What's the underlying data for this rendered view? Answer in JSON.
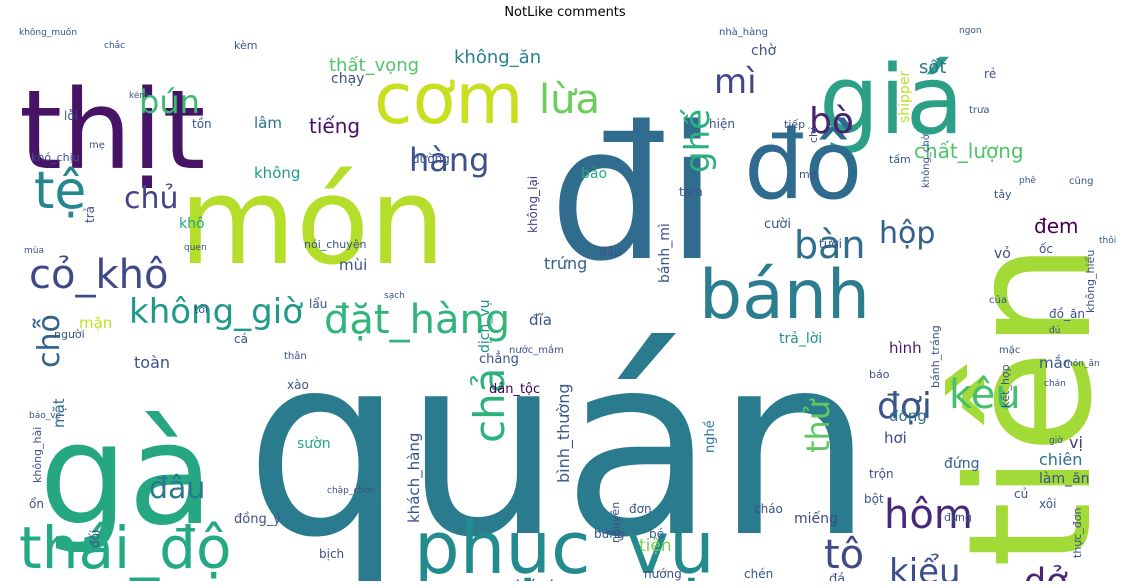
{
  "chart_data": {
    "type": "wordcloud",
    "title": "NotLike comments",
    "words": [
      {
        "text": "quán",
        "color": "#2a7b8e"
      },
      {
        "text": "đi",
        "color": "#2f6c8e"
      },
      {
        "text": "món",
        "color": "#b5de2b"
      },
      {
        "text": "tiền",
        "color": "#a2da37"
      },
      {
        "text": "thịt",
        "color": "#471365"
      },
      {
        "text": "gà",
        "color": "#25a882"
      },
      {
        "text": "giá",
        "color": "#2c9f87"
      },
      {
        "text": "đồ",
        "color": "#2f6b8e"
      },
      {
        "text": "cơm",
        "color": "#c8e020"
      },
      {
        "text": "bánh",
        "color": "#2b7e8e"
      },
      {
        "text": "phục_vụ",
        "color": "#238a8d"
      },
      {
        "text": "thái_độ",
        "color": "#23a983"
      },
      {
        "text": "tệ",
        "color": "#24878e"
      },
      {
        "text": "cỏ_khô",
        "color": "#3f4889"
      },
      {
        "text": "đặt_hàng",
        "color": "#31b57b"
      },
      {
        "text": "không_giờ",
        "color": "#1f9a8a"
      },
      {
        "text": "bàn",
        "color": "#2e6f8e"
      },
      {
        "text": "hộp",
        "color": "#34608d"
      },
      {
        "text": "hàng",
        "color": "#3b528b"
      },
      {
        "text": "lừa",
        "color": "#6ccd5a"
      },
      {
        "text": "chả",
        "color": "#2db27d"
      },
      {
        "text": "kêu",
        "color": "#46c06f"
      },
      {
        "text": "tô",
        "color": "#3e4a89"
      },
      {
        "text": "kiểu",
        "color": "#3c4f8a"
      },
      {
        "text": "hôm",
        "color": "#482979"
      },
      {
        "text": "đợi",
        "color": "#3a538b"
      },
      {
        "text": "dở",
        "color": "#482677"
      },
      {
        "text": "bún",
        "color": "#3bbb75"
      },
      {
        "text": "bò",
        "color": "#482173"
      },
      {
        "text": "mì",
        "color": "#3f4788"
      },
      {
        "text": "ghế",
        "color": "#2ab07f"
      },
      {
        "text": "chủ",
        "color": "#414487"
      },
      {
        "text": "chỗ",
        "color": "#33628d"
      },
      {
        "text": "đâu",
        "color": "#2a788e"
      },
      {
        "text": "thử",
        "color": "#5ec962"
      },
      {
        "text": "tiếng",
        "color": "#471063"
      },
      {
        "text": "chất_lượng",
        "color": "#50c46a"
      },
      {
        "text": "thất_vọng",
        "color": "#52c569"
      },
      {
        "text": "không_ăn",
        "color": "#27808e"
      },
      {
        "text": "sốt",
        "color": "#2c738e"
      },
      {
        "text": "shipper",
        "color": "#bddf26"
      },
      {
        "text": "đem",
        "color": "#440154"
      },
      {
        "text": "nhánh",
        "color": "#3b528b"
      },
      {
        "text": "tiện",
        "color": "#7ad151"
      },
      {
        "text": "trứng",
        "color": "#355f8d"
      },
      {
        "text": "mặn",
        "color": "#c2df23"
      },
      {
        "text": "toàn",
        "color": "#3b528b"
      },
      {
        "text": "mặt",
        "color": "#2c728e"
      },
      {
        "text": "đồng_ý",
        "color": "#3b528b"
      },
      {
        "text": "chiên",
        "color": "#2d708e"
      },
      {
        "text": "miếng",
        "color": "#3e4989"
      },
      {
        "text": "bình_thường",
        "color": "#38588c"
      },
      {
        "text": "khách_hàng",
        "color": "#3b528b"
      },
      {
        "text": "dịch_vụ",
        "color": "#21918c"
      },
      {
        "text": "không_thấy",
        "color": "#25858e"
      },
      {
        "text": "không_lại",
        "color": "#424086"
      },
      {
        "text": "mùi",
        "color": "#3b528b"
      },
      {
        "text": "sườn",
        "color": "#22a785"
      },
      {
        "text": "hơi",
        "color": "#3e4a89"
      },
      {
        "text": "vị",
        "color": "#433e85"
      },
      {
        "text": "đồng",
        "color": "#2b748e"
      },
      {
        "text": "đĩa",
        "color": "#3b528b"
      },
      {
        "text": "hình",
        "color": "#481b6d"
      },
      {
        "text": "mắc",
        "color": "#38598c"
      },
      {
        "text": "trả_lời",
        "color": "#1f958b"
      },
      {
        "text": "dân_tộc",
        "color": "#440154"
      },
      {
        "text": "làm_ăn",
        "color": "#3b528b"
      },
      {
        "text": "đứng",
        "color": "#34608d"
      },
      {
        "text": "vỏ",
        "color": "#3d4d8a"
      },
      {
        "text": "bảo",
        "color": "#25ab82"
      },
      {
        "text": "khô",
        "color": "#20a386"
      },
      {
        "text": "không",
        "color": "#1e9c89"
      },
      {
        "text": "lâm",
        "color": "#2c718e"
      },
      {
        "text": "chờ",
        "color": "#3b528b"
      },
      {
        "text": "chạy",
        "color": "#3b528b"
      },
      {
        "text": "chẳng",
        "color": "#3b528b"
      },
      {
        "text": "tươi",
        "color": "#3b528b"
      },
      {
        "text": "cười",
        "color": "#3b528b"
      },
      {
        "text": "nghề",
        "color": "#2a788e"
      },
      {
        "text": "bánh_mì",
        "color": "#39568c"
      },
      {
        "text": "cá",
        "color": "#3b528b"
      },
      {
        "text": "ốc",
        "color": "#3b528b"
      },
      {
        "text": "xôi",
        "color": "#3b528b"
      },
      {
        "text": "bứng",
        "color": "#3b528b"
      },
      {
        "text": "trộn",
        "color": "#3b528b"
      },
      {
        "text": "đơn",
        "color": "#3b528b"
      },
      {
        "text": "nướng",
        "color": "#3b528b"
      },
      {
        "text": "tốt",
        "color": "#3b528b"
      },
      {
        "text": "bịch",
        "color": "#3b528b"
      },
      {
        "text": "chén",
        "color": "#3b528b"
      },
      {
        "text": "đá",
        "color": "#3b528b"
      },
      {
        "text": "xào",
        "color": "#3b528b"
      },
      {
        "text": "lẩu",
        "color": "#3b528b"
      },
      {
        "text": "đậu",
        "color": "#3b528b"
      },
      {
        "text": "đường",
        "color": "#3b528b"
      },
      {
        "text": "tạm",
        "color": "#3b528b"
      },
      {
        "text": "đồ_ăn",
        "color": "#3b528b"
      },
      {
        "text": "đối",
        "color": "#3b528b"
      },
      {
        "text": "nguyên",
        "color": "#3b528b"
      },
      {
        "text": "tiếp",
        "color": "#3b528b"
      },
      {
        "text": "thực_đơn",
        "color": "#3b528b"
      },
      {
        "text": "bé",
        "color": "#3b528b"
      },
      {
        "text": "bột",
        "color": "#3b528b"
      },
      {
        "text": "cháo",
        "color": "#3b528b"
      },
      {
        "text": "củ",
        "color": "#3b528b"
      },
      {
        "text": "tôi",
        "color": "#3b528b"
      },
      {
        "text": "người",
        "color": "#3b528b"
      },
      {
        "text": "lỗi",
        "color": "#3b528b"
      },
      {
        "text": "khó_chịu",
        "color": "#3b528b"
      },
      {
        "text": "trả",
        "color": "#3b528b"
      },
      {
        "text": "hiện",
        "color": "#3b528b"
      },
      {
        "text": "tồn",
        "color": "#3b528b"
      },
      {
        "text": "kèm",
        "color": "#3b528b"
      },
      {
        "text": "rẻ",
        "color": "#3b528b"
      },
      {
        "text": "mở",
        "color": "#3b528b"
      },
      {
        "text": "ổn",
        "color": "#3b528b"
      },
      {
        "text": "không_hiểu",
        "color": "#3b528b"
      },
      {
        "text": "kết_hợp",
        "color": "#3b528b"
      },
      {
        "text": "nói_chuyện",
        "color": "#3b528b"
      },
      {
        "text": "bánh_tráng",
        "color": "#3b528b"
      },
      {
        "text": "báo",
        "color": "#3b528b"
      },
      {
        "text": "không_hài",
        "color": "#3b528b"
      },
      {
        "text": "cũng",
        "color": "#3b528b"
      },
      {
        "text": "mẹ",
        "color": "#3b528b"
      },
      {
        "text": "đựng",
        "color": "#3b528b"
      },
      {
        "text": "thân",
        "color": "#3b528b"
      },
      {
        "text": "chỉ",
        "color": "#3b528b"
      },
      {
        "text": "tấm",
        "color": "#3b528b"
      },
      {
        "text": "mặc",
        "color": "#3b528b"
      },
      {
        "text": "nước_mắm",
        "color": "#3b528b"
      },
      {
        "text": "không_chờ",
        "color": "#3b528b"
      },
      {
        "text": "trưa",
        "color": "#3b528b"
      },
      {
        "text": "tây",
        "color": "#3b528b"
      },
      {
        "text": "nhà_hàng",
        "color": "#3b528b"
      },
      {
        "text": "không_muốn",
        "color": "#3b528b"
      },
      {
        "text": "chắc",
        "color": "#3b528b"
      },
      {
        "text": "phê",
        "color": "#3b528b"
      },
      {
        "text": "ngon",
        "color": "#3b528b"
      },
      {
        "text": "của",
        "color": "#3b528b"
      },
      {
        "text": "quen",
        "color": "#3b528b"
      },
      {
        "text": "sạch",
        "color": "#3b528b"
      },
      {
        "text": "mùa",
        "color": "#3b528b"
      },
      {
        "text": "đủ",
        "color": "#3b528b"
      },
      {
        "text": "món_ăn",
        "color": "#3b528b"
      },
      {
        "text": "kém",
        "color": "#3b528b"
      },
      {
        "text": "chán",
        "color": "#3b528b"
      },
      {
        "text": "bảo_vệ",
        "color": "#3b528b"
      },
      {
        "text": "thôi",
        "color": "#3b528b"
      },
      {
        "text": "giờ",
        "color": "#3b528b"
      },
      {
        "text": "chập_chờn",
        "color": "#3b528b"
      }
    ]
  }
}
